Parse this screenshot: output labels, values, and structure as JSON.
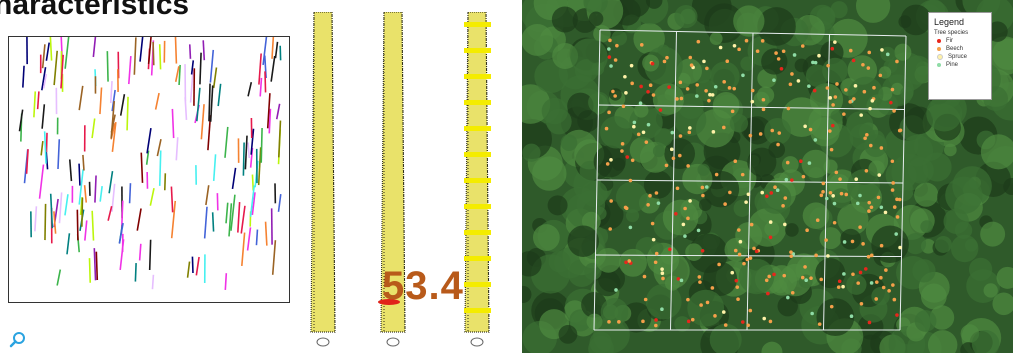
{
  "heading": "haracteristics",
  "measurement": "53.4",
  "legend": {
    "title": "Legend",
    "subtitle": "Tree species",
    "items": [
      {
        "label": "Fir",
        "color": "#e8261c"
      },
      {
        "label": "Beech",
        "color": "#f5a04a"
      },
      {
        "label": "Spruce",
        "color": "#fff2a8"
      },
      {
        "label": "Pine",
        "color": "#8fdca6"
      }
    ]
  },
  "icons": [
    "zoom-icon"
  ],
  "colors": {
    "trunk": "#e9e26a",
    "band": "#f4ec00",
    "aerial": "#2f5a2a",
    "measure": "#b85a1a"
  }
}
